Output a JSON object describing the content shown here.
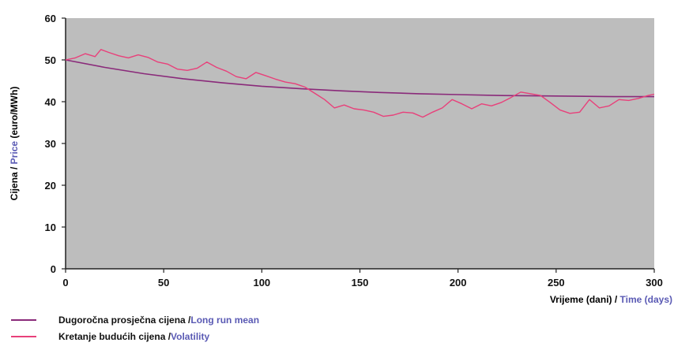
{
  "chart_data": {
    "type": "line",
    "xlim": [
      0,
      300
    ],
    "ylim": [
      0,
      60
    ],
    "x_ticks": [
      "0",
      "50",
      "100",
      "150",
      "200",
      "250",
      "300"
    ],
    "y_ticks": [
      "0",
      "10",
      "20",
      "30",
      "40",
      "50",
      "60"
    ],
    "ylabel_a": "Cijena / ",
    "ylabel_b": "Price",
    "ylabel_c": " (euro/MWh)",
    "xlabel_a": "Vrijeme (dani) / ",
    "xlabel_b": "Time (days)",
    "grid": false,
    "plot_background": "#bdbdbd",
    "series": [
      {
        "name_a": "Dugoročna prosječna cijena / ",
        "name_b": "Long run mean",
        "color": "#8a2a7a",
        "x": [
          0,
          20,
          40,
          60,
          80,
          100,
          120,
          140,
          160,
          180,
          200,
          220,
          240,
          260,
          280,
          300
        ],
        "values": [
          50,
          48.2,
          46.7,
          45.5,
          44.5,
          43.7,
          43.1,
          42.6,
          42.2,
          41.9,
          41.7,
          41.5,
          41.4,
          41.3,
          41.2,
          41.2
        ]
      },
      {
        "name_a": "Kretanje budućih cijena / ",
        "name_b": "Volatility",
        "color": "#e8407a",
        "x": [
          0,
          5,
          10,
          15,
          18,
          22,
          27,
          32,
          37,
          42,
          47,
          52,
          57,
          62,
          67,
          72,
          77,
          82,
          87,
          92,
          97,
          102,
          107,
          112,
          117,
          122,
          127,
          132,
          137,
          142,
          147,
          152,
          157,
          162,
          167,
          172,
          177,
          182,
          187,
          192,
          197,
          202,
          207,
          212,
          217,
          222,
          227,
          232,
          237,
          242,
          247,
          252,
          257,
          262,
          267,
          272,
          277,
          282,
          287,
          292,
          297,
          300
        ],
        "values": [
          50,
          50.5,
          51.5,
          50.8,
          52.5,
          51.8,
          51,
          50.5,
          51.2,
          50.6,
          49.5,
          49,
          47.8,
          47.5,
          48,
          49.5,
          48.2,
          47.3,
          46,
          45.5,
          47,
          46.2,
          45.4,
          44.7,
          44.3,
          43.5,
          42,
          40.5,
          38.5,
          39.2,
          38.3,
          38,
          37.5,
          36.5,
          36.8,
          37.5,
          37.3,
          36.3,
          37.5,
          38.5,
          40.5,
          39.5,
          38.3,
          39.5,
          39,
          39.8,
          41,
          42.3,
          41.9,
          41.5,
          39.8,
          38,
          37.2,
          37.5,
          40.5,
          38.5,
          39,
          40.5,
          40.3,
          40.8,
          41.5,
          41.8
        ]
      }
    ]
  }
}
